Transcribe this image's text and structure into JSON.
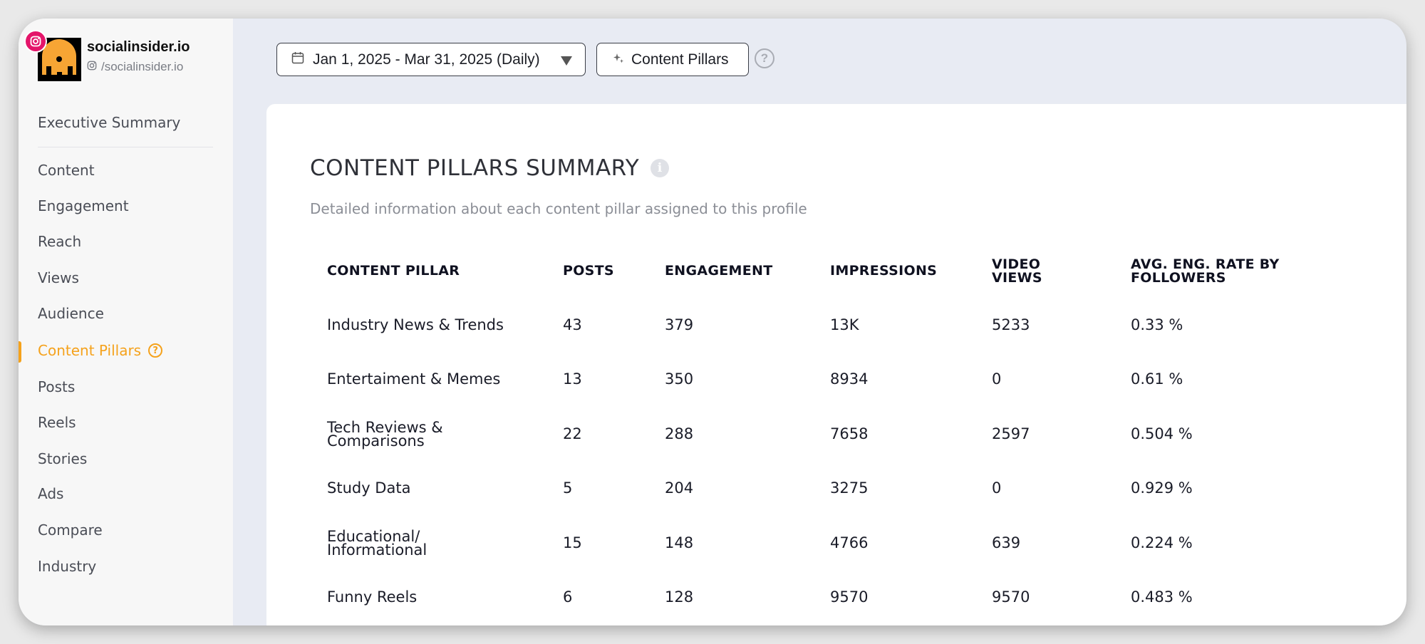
{
  "profile": {
    "name": "socialinsider.io",
    "handle": "/socialinsider.io"
  },
  "nav": {
    "items": [
      {
        "label": "Executive Summary"
      },
      {
        "label": "Content"
      },
      {
        "label": "Engagement"
      },
      {
        "label": "Reach"
      },
      {
        "label": "Views"
      },
      {
        "label": "Audience"
      },
      {
        "label": "Content Pillars",
        "active": true
      },
      {
        "label": "Posts"
      },
      {
        "label": "Reels"
      },
      {
        "label": "Stories"
      },
      {
        "label": "Ads"
      },
      {
        "label": "Compare"
      },
      {
        "label": "Industry"
      }
    ]
  },
  "toolbar": {
    "date_range": "Jan 1, 2025 - Mar 31, 2025 (Daily)",
    "pillars_button": "Content Pillars",
    "help": "?"
  },
  "summary": {
    "title": "CONTENT PILLARS SUMMARY",
    "subtitle": "Detailed information about each content pillar assigned to this profile",
    "columns": [
      "CONTENT PILLAR",
      "POSTS",
      "ENGAGEMENT",
      "IMPRESSIONS",
      "VIDEO VIEWS",
      "AVG. ENG. RATE BY FOLLOWERS"
    ],
    "rows": [
      [
        "Industry News & Trends",
        "43",
        "379",
        "13K",
        "5233",
        "0.33 %"
      ],
      [
        "Entertaiment & Memes",
        "13",
        "350",
        "8934",
        "0",
        "0.61 %"
      ],
      [
        "Tech Reviews & Comparisons",
        "22",
        "288",
        "7658",
        "2597",
        "0.504 %"
      ],
      [
        "Study Data",
        "5",
        "204",
        "3275",
        "0",
        "0.929 %"
      ],
      [
        "Educational/ Informational",
        "15",
        "148",
        "4766",
        "639",
        "0.224 %"
      ],
      [
        "Funny Reels",
        "6",
        "128",
        "9570",
        "9570",
        "0.483 %"
      ]
    ]
  },
  "colors": {
    "accent": "#f5a21c",
    "instagram": "#e4156a",
    "background": "#e8ebf3"
  }
}
